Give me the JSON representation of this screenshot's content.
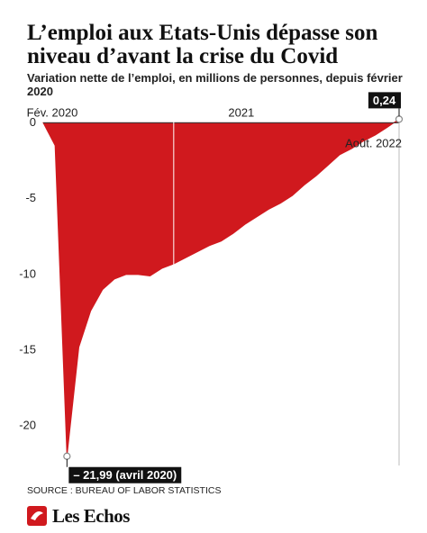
{
  "chart_data": {
    "type": "area",
    "title": "L’emploi aux Etats-Unis dépasse son niveau d’avant la crise du Covid",
    "subtitle": "Variation nette de l’emploi, en millions de personnes, depuis février 2020",
    "source": "SOURCE : BUREAU OF LABOR STATISTICS",
    "brand": "Les Echos",
    "categories": [
      "Fév. 2020",
      null,
      null,
      null,
      null,
      null,
      null,
      null,
      null,
      null,
      null,
      "2021",
      null,
      null,
      null,
      null,
      null,
      null,
      null,
      null,
      null,
      null,
      null,
      null,
      null,
      null,
      null,
      null,
      null,
      null,
      "Août. 2022"
    ],
    "values": [
      0,
      -1.5,
      -21.99,
      -14.8,
      -12.4,
      -11.0,
      -10.3,
      -10.0,
      -10.0,
      -10.1,
      -9.6,
      -9.3,
      -8.9,
      -8.5,
      -8.1,
      -7.8,
      -7.3,
      -6.7,
      -6.2,
      -5.7,
      -5.3,
      -4.8,
      -4.1,
      -3.5,
      -2.8,
      -2.1,
      -1.7,
      -1.2,
      -0.8,
      -0.3,
      0.24
    ],
    "value_labels": [
      null,
      null,
      "– 21,99 (avril 2020)",
      null,
      null,
      null,
      null,
      null,
      null,
      null,
      null,
      null,
      null,
      null,
      null,
      null,
      null,
      null,
      null,
      null,
      null,
      null,
      null,
      null,
      null,
      null,
      null,
      null,
      null,
      null,
      "0,24"
    ],
    "color": "#d0191e",
    "ylim": [
      -22.6,
      0.5
    ],
    "yticks": [
      0,
      -5,
      -10,
      -15,
      -20
    ],
    "grid": true
  }
}
